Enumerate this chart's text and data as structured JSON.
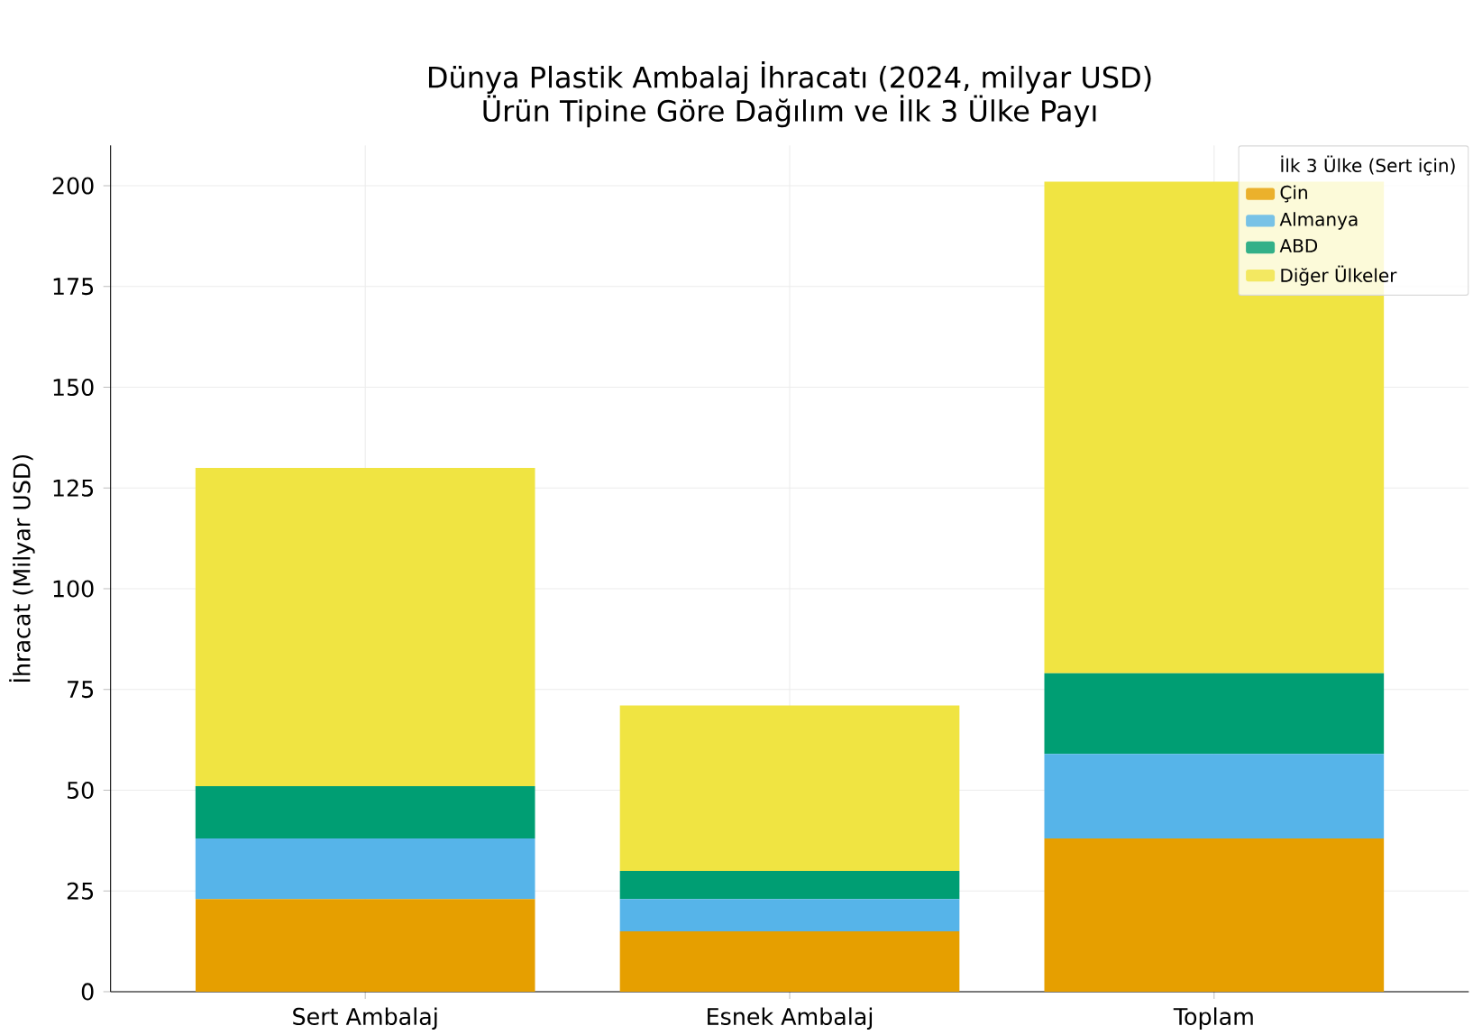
{
  "chart_data": {
    "type": "bar",
    "stacked": true,
    "title": "Dünya Plastik Ambalaj İhracatı (2024, milyar USD)",
    "subtitle": "Ürün Tipine Göre Dağılım ve İlk 3 Ülke Payı",
    "ylabel": "İhracat (Milyar USD)",
    "legend_title": "İlk 3 Ülke (Sert için)",
    "categories": [
      "Sert Ambalaj",
      "Esnek Ambalaj",
      "Toplam"
    ],
    "series": [
      {
        "name": "Çin",
        "color": "#e69f00",
        "values": [
          23,
          15,
          38
        ]
      },
      {
        "name": "Almanya",
        "color": "#56b4e9",
        "values": [
          15,
          8,
          21
        ]
      },
      {
        "name": "ABD",
        "color": "#009e73",
        "values": [
          13,
          7,
          20
        ]
      },
      {
        "name": "Diğer Ülkeler",
        "color": "#f0e442",
        "values": [
          79,
          41,
          122
        ]
      }
    ],
    "ylim": [
      0,
      210
    ],
    "yticks": [
      0,
      25,
      50,
      75,
      100,
      125,
      150,
      175,
      200
    ],
    "grid": true,
    "legend": "top right"
  }
}
